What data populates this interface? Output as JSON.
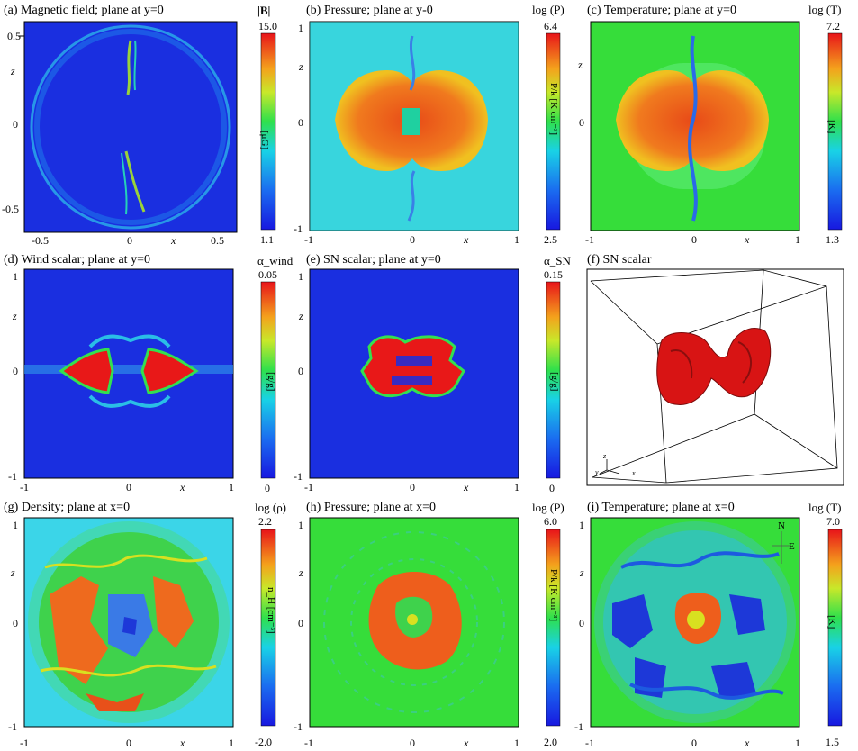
{
  "panels": [
    {
      "id": "a",
      "title": "(a) Magnetic field; plane at y=0",
      "cb_label": "|B|",
      "cb_max": "15.0",
      "cb_min": "1.1",
      "cb_unit": "[μG]",
      "xticks": [
        "-0.5",
        "0",
        "0.5"
      ],
      "yticks": [
        "0.5",
        "z",
        "0",
        "-0.5"
      ],
      "xlabel": "x"
    },
    {
      "id": "b",
      "title": "(b) Pressure; plane at y-0",
      "cb_label": "log (P)",
      "cb_max": "6.4",
      "cb_min": "2.5",
      "cb_unit": "P/k [K cm⁻³]",
      "xticks": [
        "-1",
        "0",
        "x",
        "1"
      ],
      "yticks": [
        "1",
        "z",
        "0",
        "-1"
      ]
    },
    {
      "id": "c",
      "title": "(c) Temperature; plane at y=0",
      "cb_label": "log (T)",
      "cb_max": "7.2",
      "cb_min": "1.3",
      "cb_unit": "[K]",
      "xticks": [
        "-1",
        "0",
        "x",
        "1"
      ],
      "yticks": [
        "z",
        "0"
      ]
    },
    {
      "id": "d",
      "title": "(d) Wind scalar; plane at y=0",
      "cb_label": "α_wind",
      "cb_max": "0.05",
      "cb_min": "0",
      "cb_unit": "[g/g]",
      "xticks": [
        "-1",
        "0",
        "x",
        "1"
      ],
      "yticks": [
        "1",
        "z",
        "0",
        "-1"
      ]
    },
    {
      "id": "e",
      "title": "(e) SN scalar; plane at y=0",
      "cb_label": "α_SN",
      "cb_max": "0.15",
      "cb_min": "0",
      "cb_unit": "[g/g]",
      "xticks": [
        "-1",
        "0",
        "x",
        "1"
      ],
      "yticks": [
        "1",
        "z",
        "0",
        "-1"
      ]
    },
    {
      "id": "f",
      "title": "(f) SN scalar",
      "axes3d": [
        "z",
        "y",
        "x"
      ]
    },
    {
      "id": "g",
      "title": "(g) Density; plane at x=0",
      "cb_label": "log (ρ)",
      "cb_max": "2.2",
      "cb_min": "-2.0",
      "cb_unit": "n_H [cm⁻³]",
      "xticks": [
        "-1",
        "0",
        "x",
        "1"
      ],
      "yticks": [
        "1",
        "z",
        "0",
        "-1"
      ]
    },
    {
      "id": "h",
      "title": "(h) Pressure; plane at x=0",
      "cb_label": "log (P)",
      "cb_max": "6.0",
      "cb_min": "2.0",
      "cb_unit": "P/k [K cm⁻³]",
      "xticks": [
        "-1",
        "0",
        "x",
        "1"
      ],
      "yticks": [
        "1",
        "z",
        "0",
        "-1"
      ]
    },
    {
      "id": "i",
      "title": "(i) Temperature; plane at x=0",
      "cb_label": "log (T)",
      "cb_max": "7.0",
      "cb_min": "1.5",
      "cb_unit": "[K]",
      "xticks": [
        "-1",
        "0",
        "x",
        "1"
      ],
      "yticks": [
        "1",
        "z",
        "0",
        "-1"
      ],
      "compass": [
        "N",
        "E"
      ]
    }
  ]
}
